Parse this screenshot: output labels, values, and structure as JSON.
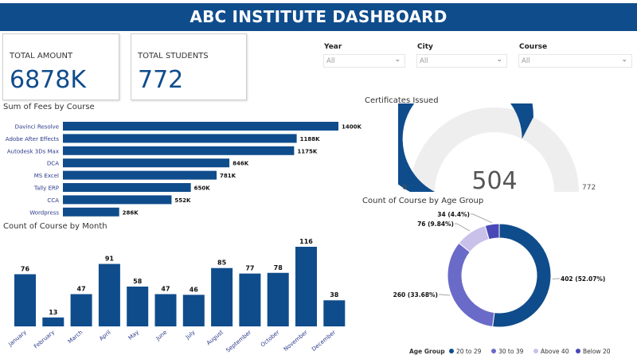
{
  "header": {
    "title": "ABC INSTITUTE DASHBOARD"
  },
  "cards": {
    "total_amount": {
      "label": "TOTAL AMOUNT",
      "value": "6878K"
    },
    "total_students": {
      "label": "TOTAL STUDENTS",
      "value": "772"
    }
  },
  "filters": [
    {
      "label": "Year",
      "value": "All"
    },
    {
      "label": "City",
      "value": "All"
    },
    {
      "label": "Course",
      "value": "All"
    }
  ],
  "colors": {
    "primary": "#0f4c8c",
    "secondary": "#6a6ac8",
    "tertiary": "#c9c1ea",
    "quaternary": "#4848b8",
    "gauge_bg": "#eeeeee"
  },
  "chart_data": [
    {
      "type": "bar",
      "orientation": "horizontal",
      "title": "Sum of Fees by Course",
      "categories": [
        "Davinci Resolve",
        "Adobe After Effects",
        "Autodesk 3Ds Max",
        "DCA",
        "MS Excel",
        "Tally ERP",
        "CCA",
        "Wordpress"
      ],
      "values": [
        1400,
        1188,
        1175,
        846,
        781,
        650,
        552,
        286
      ],
      "labels": [
        "1400K",
        "1188K",
        "1175K",
        "846K",
        "781K",
        "650K",
        "552K",
        "286K"
      ]
    },
    {
      "type": "bar",
      "title": "Count of Course by Month",
      "categories": [
        "January",
        "February",
        "March",
        "April",
        "May",
        "June",
        "July",
        "August",
        "September",
        "October",
        "November",
        "December"
      ],
      "values": [
        76,
        13,
        47,
        91,
        58,
        47,
        46,
        85,
        77,
        78,
        116,
        38
      ]
    },
    {
      "type": "gauge",
      "title": "Certificates Issued",
      "value": 504,
      "min": 0,
      "max": 772,
      "value_label": "504",
      "min_label": "0",
      "max_label": "772"
    },
    {
      "type": "pie",
      "title": "Count of Course by Age Group",
      "legend_title": "Age Group",
      "slices": [
        {
          "name": "20 to 29",
          "value": 402,
          "label": "402 (52.07%)"
        },
        {
          "name": "30 to 39",
          "value": 260,
          "label": "260 (33.68%)"
        },
        {
          "name": "Above 40",
          "value": 76,
          "label": "76 (9.84%)"
        },
        {
          "name": "Below 20",
          "value": 34,
          "label": "34 (4.4%)"
        }
      ]
    }
  ]
}
